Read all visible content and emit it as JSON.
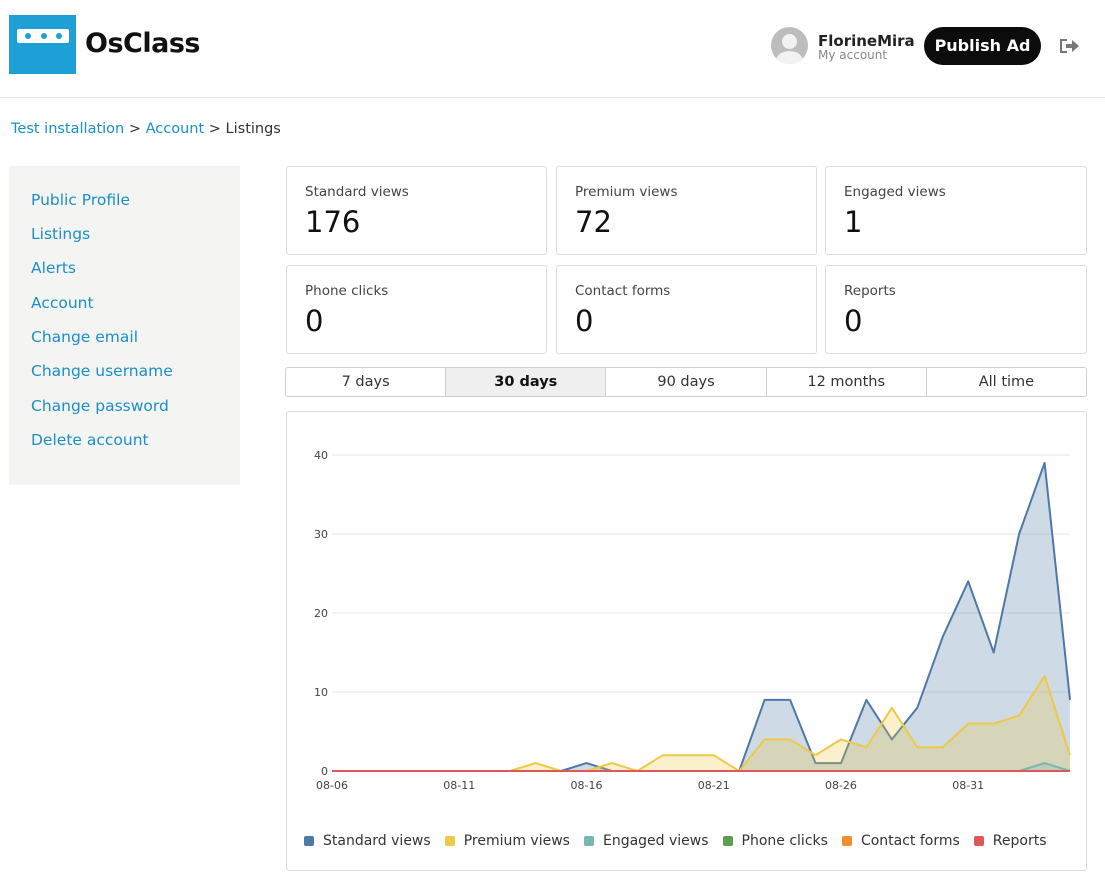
{
  "brand": {
    "name": "OsClass"
  },
  "user": {
    "name": "FlorineMira",
    "subtitle": "My account"
  },
  "header": {
    "publish_label": "Publish Ad",
    "logout_icon": "logout-icon"
  },
  "breadcrumb": {
    "home": "Test installation",
    "sep1": ">",
    "account": "Account",
    "sep2": ">",
    "current": "Listings"
  },
  "sidebar": {
    "items": [
      {
        "label": "Public Profile"
      },
      {
        "label": "Listings"
      },
      {
        "label": "Alerts"
      },
      {
        "label": "Account"
      },
      {
        "label": "Change email"
      },
      {
        "label": "Change username"
      },
      {
        "label": "Change password"
      },
      {
        "label": "Delete account"
      }
    ]
  },
  "stats": [
    {
      "label": "Standard views",
      "value": "176"
    },
    {
      "label": "Premium views",
      "value": "72"
    },
    {
      "label": "Engaged views",
      "value": "1"
    },
    {
      "label": "Phone clicks",
      "value": "0"
    },
    {
      "label": "Contact forms",
      "value": "0"
    },
    {
      "label": "Reports",
      "value": "0"
    }
  ],
  "ranges": {
    "active": "30 days",
    "options": [
      "7 days",
      "30 days",
      "90 days",
      "12 months",
      "All time"
    ]
  },
  "colors": {
    "accent": "#1a8fc9",
    "standard": "#4e79a7",
    "premium": "#edc948",
    "engaged": "#76b7b2",
    "phone": "#59a14f",
    "contact": "#f28e2b",
    "reports": "#e15759"
  },
  "chart_data": {
    "type": "area",
    "x": [
      "08-06",
      "08-07",
      "08-08",
      "08-09",
      "08-10",
      "08-11",
      "08-12",
      "08-13",
      "08-14",
      "08-15",
      "08-16",
      "08-17",
      "08-18",
      "08-19",
      "08-20",
      "08-21",
      "08-22",
      "08-23",
      "08-24",
      "08-25",
      "08-26",
      "08-27",
      "08-28",
      "08-29",
      "08-30",
      "08-31",
      "09-01",
      "09-02",
      "09-03",
      "09-04"
    ],
    "x_tick_labels": [
      "08-06",
      "08-11",
      "08-16",
      "08-21",
      "08-26",
      "08-31"
    ],
    "y_ticks": [
      0,
      10,
      20,
      30,
      40
    ],
    "ylim": [
      0,
      40
    ],
    "grid": true,
    "legend_position": "bottom",
    "series": [
      {
        "name": "Standard views",
        "color": "#4e79a7",
        "values": [
          0,
          0,
          0,
          0,
          0,
          0,
          0,
          0,
          0,
          0,
          1,
          0,
          0,
          0,
          0,
          0,
          0,
          9,
          9,
          1,
          1,
          9,
          4,
          8,
          17,
          24,
          15,
          30,
          39,
          9
        ]
      },
      {
        "name": "Premium views",
        "color": "#edc948",
        "values": [
          0,
          0,
          0,
          0,
          0,
          0,
          0,
          0,
          1,
          0,
          0,
          1,
          0,
          2,
          2,
          2,
          0,
          4,
          4,
          2,
          4,
          3,
          8,
          3,
          3,
          6,
          6,
          7,
          12,
          2
        ]
      },
      {
        "name": "Engaged views",
        "color": "#76b7b2",
        "values": [
          0,
          0,
          0,
          0,
          0,
          0,
          0,
          0,
          0,
          0,
          0,
          0,
          0,
          0,
          0,
          0,
          0,
          0,
          0,
          0,
          0,
          0,
          0,
          0,
          0,
          0,
          0,
          0,
          1,
          0
        ]
      },
      {
        "name": "Phone clicks",
        "color": "#59a14f",
        "values": [
          0,
          0,
          0,
          0,
          0,
          0,
          0,
          0,
          0,
          0,
          0,
          0,
          0,
          0,
          0,
          0,
          0,
          0,
          0,
          0,
          0,
          0,
          0,
          0,
          0,
          0,
          0,
          0,
          0,
          0
        ]
      },
      {
        "name": "Contact forms",
        "color": "#f28e2b",
        "values": [
          0,
          0,
          0,
          0,
          0,
          0,
          0,
          0,
          0,
          0,
          0,
          0,
          0,
          0,
          0,
          0,
          0,
          0,
          0,
          0,
          0,
          0,
          0,
          0,
          0,
          0,
          0,
          0,
          0,
          0
        ]
      },
      {
        "name": "Reports",
        "color": "#e15759",
        "values": [
          0,
          0,
          0,
          0,
          0,
          0,
          0,
          0,
          0,
          0,
          0,
          0,
          0,
          0,
          0,
          0,
          0,
          0,
          0,
          0,
          0,
          0,
          0,
          0,
          0,
          0,
          0,
          0,
          0,
          0
        ]
      }
    ]
  }
}
